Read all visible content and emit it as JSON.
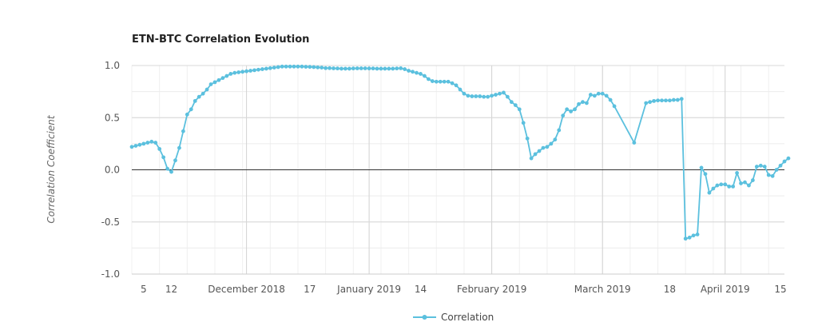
{
  "chart_data": {
    "type": "line",
    "title": "ETN-BTC Correlation Evolution",
    "xlabel": "",
    "ylabel": "Correlation Coefficient",
    "ylim": [
      -1.0,
      1.0
    ],
    "y_ticks": [
      "1.0",
      "0.5",
      "0.0",
      "-0.5",
      "-1.0"
    ],
    "y_tick_values": [
      1.0,
      0.5,
      0.0,
      -0.5,
      -1.0
    ],
    "x_range": [
      "2018-11-02",
      "2019-04-16"
    ],
    "x_ticks": [
      {
        "label": "5",
        "date": "2018-11-05"
      },
      {
        "label": "12",
        "date": "2018-11-12"
      },
      {
        "label": "December 2018",
        "date": "2018-12-01"
      },
      {
        "label": "17",
        "date": "2018-12-17"
      },
      {
        "label": "January 2019",
        "date": "2019-01-01"
      },
      {
        "label": "14",
        "date": "2019-01-14"
      },
      {
        "label": "February 2019",
        "date": "2019-02-01"
      },
      {
        "label": "March 2019",
        "date": "2019-03-01"
      },
      {
        "label": "18",
        "date": "2019-03-18"
      },
      {
        "label": "April 2019",
        "date": "2019-04-01"
      },
      {
        "label": "15",
        "date": "2019-04-15"
      }
    ],
    "grid": true,
    "legend_position": "bottom-center",
    "series": [
      {
        "name": "Correlation",
        "color": "#5bc0de",
        "points": [
          [
            "2018-11-02",
            0.22
          ],
          [
            "2018-11-03",
            0.23
          ],
          [
            "2018-11-04",
            0.24
          ],
          [
            "2018-11-05",
            0.25
          ],
          [
            "2018-11-06",
            0.26
          ],
          [
            "2018-11-07",
            0.27
          ],
          [
            "2018-11-08",
            0.26
          ],
          [
            "2018-11-09",
            0.2
          ],
          [
            "2018-11-10",
            0.12
          ],
          [
            "2018-11-11",
            0.01
          ],
          [
            "2018-11-12",
            -0.02
          ],
          [
            "2018-11-13",
            0.09
          ],
          [
            "2018-11-14",
            0.21
          ],
          [
            "2018-11-15",
            0.37
          ],
          [
            "2018-11-16",
            0.53
          ],
          [
            "2018-11-17",
            0.58
          ],
          [
            "2018-11-18",
            0.66
          ],
          [
            "2018-11-19",
            0.7
          ],
          [
            "2018-11-20",
            0.73
          ],
          [
            "2018-11-21",
            0.77
          ],
          [
            "2018-11-22",
            0.82
          ],
          [
            "2018-11-23",
            0.84
          ],
          [
            "2018-11-24",
            0.86
          ],
          [
            "2018-11-25",
            0.88
          ],
          [
            "2018-11-26",
            0.9
          ],
          [
            "2018-11-27",
            0.92
          ],
          [
            "2018-11-28",
            0.93
          ],
          [
            "2018-11-29",
            0.935
          ],
          [
            "2018-11-30",
            0.94
          ],
          [
            "2018-12-01",
            0.945
          ],
          [
            "2018-12-02",
            0.95
          ],
          [
            "2018-12-03",
            0.955
          ],
          [
            "2018-12-04",
            0.96
          ],
          [
            "2018-12-05",
            0.965
          ],
          [
            "2018-12-06",
            0.97
          ],
          [
            "2018-12-07",
            0.975
          ],
          [
            "2018-12-08",
            0.98
          ],
          [
            "2018-12-09",
            0.985
          ],
          [
            "2018-12-10",
            0.99
          ],
          [
            "2018-12-11",
            0.99
          ],
          [
            "2018-12-12",
            0.99
          ],
          [
            "2018-12-13",
            0.99
          ],
          [
            "2018-12-14",
            0.99
          ],
          [
            "2018-12-15",
            0.99
          ],
          [
            "2018-12-16",
            0.988
          ],
          [
            "2018-12-17",
            0.987
          ],
          [
            "2018-12-18",
            0.985
          ],
          [
            "2018-12-19",
            0.982
          ],
          [
            "2018-12-20",
            0.98
          ],
          [
            "2018-12-21",
            0.975
          ],
          [
            "2018-12-22",
            0.975
          ],
          [
            "2018-12-23",
            0.973
          ],
          [
            "2018-12-24",
            0.972
          ],
          [
            "2018-12-25",
            0.97
          ],
          [
            "2018-12-26",
            0.97
          ],
          [
            "2018-12-27",
            0.97
          ],
          [
            "2018-12-28",
            0.972
          ],
          [
            "2018-12-29",
            0.973
          ],
          [
            "2018-12-30",
            0.973
          ],
          [
            "2018-12-31",
            0.973
          ],
          [
            "2019-01-01",
            0.972
          ],
          [
            "2019-01-02",
            0.972
          ],
          [
            "2019-01-03",
            0.97
          ],
          [
            "2019-01-04",
            0.97
          ],
          [
            "2019-01-05",
            0.97
          ],
          [
            "2019-01-06",
            0.97
          ],
          [
            "2019-01-07",
            0.97
          ],
          [
            "2019-01-08",
            0.972
          ],
          [
            "2019-01-09",
            0.974
          ],
          [
            "2019-01-10",
            0.965
          ],
          [
            "2019-01-11",
            0.95
          ],
          [
            "2019-01-12",
            0.94
          ],
          [
            "2019-01-13",
            0.93
          ],
          [
            "2019-01-14",
            0.92
          ],
          [
            "2019-01-15",
            0.9
          ],
          [
            "2019-01-16",
            0.87
          ],
          [
            "2019-01-17",
            0.85
          ],
          [
            "2019-01-18",
            0.845
          ],
          [
            "2019-01-19",
            0.845
          ],
          [
            "2019-01-20",
            0.845
          ],
          [
            "2019-01-21",
            0.845
          ],
          [
            "2019-01-22",
            0.83
          ],
          [
            "2019-01-23",
            0.81
          ],
          [
            "2019-01-24",
            0.77
          ],
          [
            "2019-01-25",
            0.73
          ],
          [
            "2019-01-26",
            0.71
          ],
          [
            "2019-01-27",
            0.705
          ],
          [
            "2019-01-28",
            0.705
          ],
          [
            "2019-01-29",
            0.705
          ],
          [
            "2019-01-30",
            0.7
          ],
          [
            "2019-01-31",
            0.7
          ],
          [
            "2019-02-01",
            0.71
          ],
          [
            "2019-02-02",
            0.72
          ],
          [
            "2019-02-03",
            0.73
          ],
          [
            "2019-02-04",
            0.74
          ],
          [
            "2019-02-05",
            0.7
          ],
          [
            "2019-02-06",
            0.65
          ],
          [
            "2019-02-07",
            0.62
          ],
          [
            "2019-02-08",
            0.58
          ],
          [
            "2019-02-09",
            0.45
          ],
          [
            "2019-02-10",
            0.3
          ],
          [
            "2019-02-11",
            0.11
          ],
          [
            "2019-02-12",
            0.15
          ],
          [
            "2019-02-13",
            0.18
          ],
          [
            "2019-02-14",
            0.21
          ],
          [
            "2019-02-15",
            0.22
          ],
          [
            "2019-02-16",
            0.25
          ],
          [
            "2019-02-17",
            0.29
          ],
          [
            "2019-02-18",
            0.38
          ],
          [
            "2019-02-19",
            0.52
          ],
          [
            "2019-02-20",
            0.58
          ],
          [
            "2019-02-21",
            0.56
          ],
          [
            "2019-02-22",
            0.58
          ],
          [
            "2019-02-23",
            0.63
          ],
          [
            "2019-02-24",
            0.65
          ],
          [
            "2019-02-25",
            0.64
          ],
          [
            "2019-02-26",
            0.72
          ],
          [
            "2019-02-27",
            0.71
          ],
          [
            "2019-02-28",
            0.73
          ],
          [
            "2019-03-01",
            0.73
          ],
          [
            "2019-03-02",
            0.71
          ],
          [
            "2019-03-03",
            0.67
          ],
          [
            "2019-03-04",
            0.61
          ],
          [
            "2019-03-09",
            0.26
          ],
          [
            "2019-03-12",
            0.64
          ],
          [
            "2019-03-13",
            0.65
          ],
          [
            "2019-03-14",
            0.66
          ],
          [
            "2019-03-15",
            0.665
          ],
          [
            "2019-03-16",
            0.665
          ],
          [
            "2019-03-17",
            0.665
          ],
          [
            "2019-03-18",
            0.665
          ],
          [
            "2019-03-19",
            0.67
          ],
          [
            "2019-03-20",
            0.67
          ],
          [
            "2019-03-21",
            0.68
          ],
          [
            "2019-03-22",
            -0.66
          ],
          [
            "2019-03-23",
            -0.65
          ],
          [
            "2019-03-24",
            -0.63
          ],
          [
            "2019-03-25",
            -0.62
          ],
          [
            "2019-03-26",
            0.02
          ],
          [
            "2019-03-27",
            -0.04
          ],
          [
            "2019-03-28",
            -0.22
          ],
          [
            "2019-03-29",
            -0.18
          ],
          [
            "2019-03-30",
            -0.15
          ],
          [
            "2019-03-31",
            -0.14
          ],
          [
            "2019-04-01",
            -0.14
          ],
          [
            "2019-04-02",
            -0.16
          ],
          [
            "2019-04-03",
            -0.16
          ],
          [
            "2019-04-04",
            -0.03
          ],
          [
            "2019-04-05",
            -0.13
          ],
          [
            "2019-04-06",
            -0.12
          ],
          [
            "2019-04-07",
            -0.15
          ],
          [
            "2019-04-08",
            -0.1
          ],
          [
            "2019-04-09",
            0.03
          ],
          [
            "2019-04-10",
            0.04
          ],
          [
            "2019-04-11",
            0.03
          ],
          [
            "2019-04-12",
            -0.05
          ],
          [
            "2019-04-13",
            -0.06
          ],
          [
            "2019-04-14",
            0.0
          ],
          [
            "2019-04-15",
            0.04
          ],
          [
            "2019-04-16",
            0.08
          ],
          [
            "2019-04-17",
            0.11
          ]
        ]
      }
    ]
  }
}
